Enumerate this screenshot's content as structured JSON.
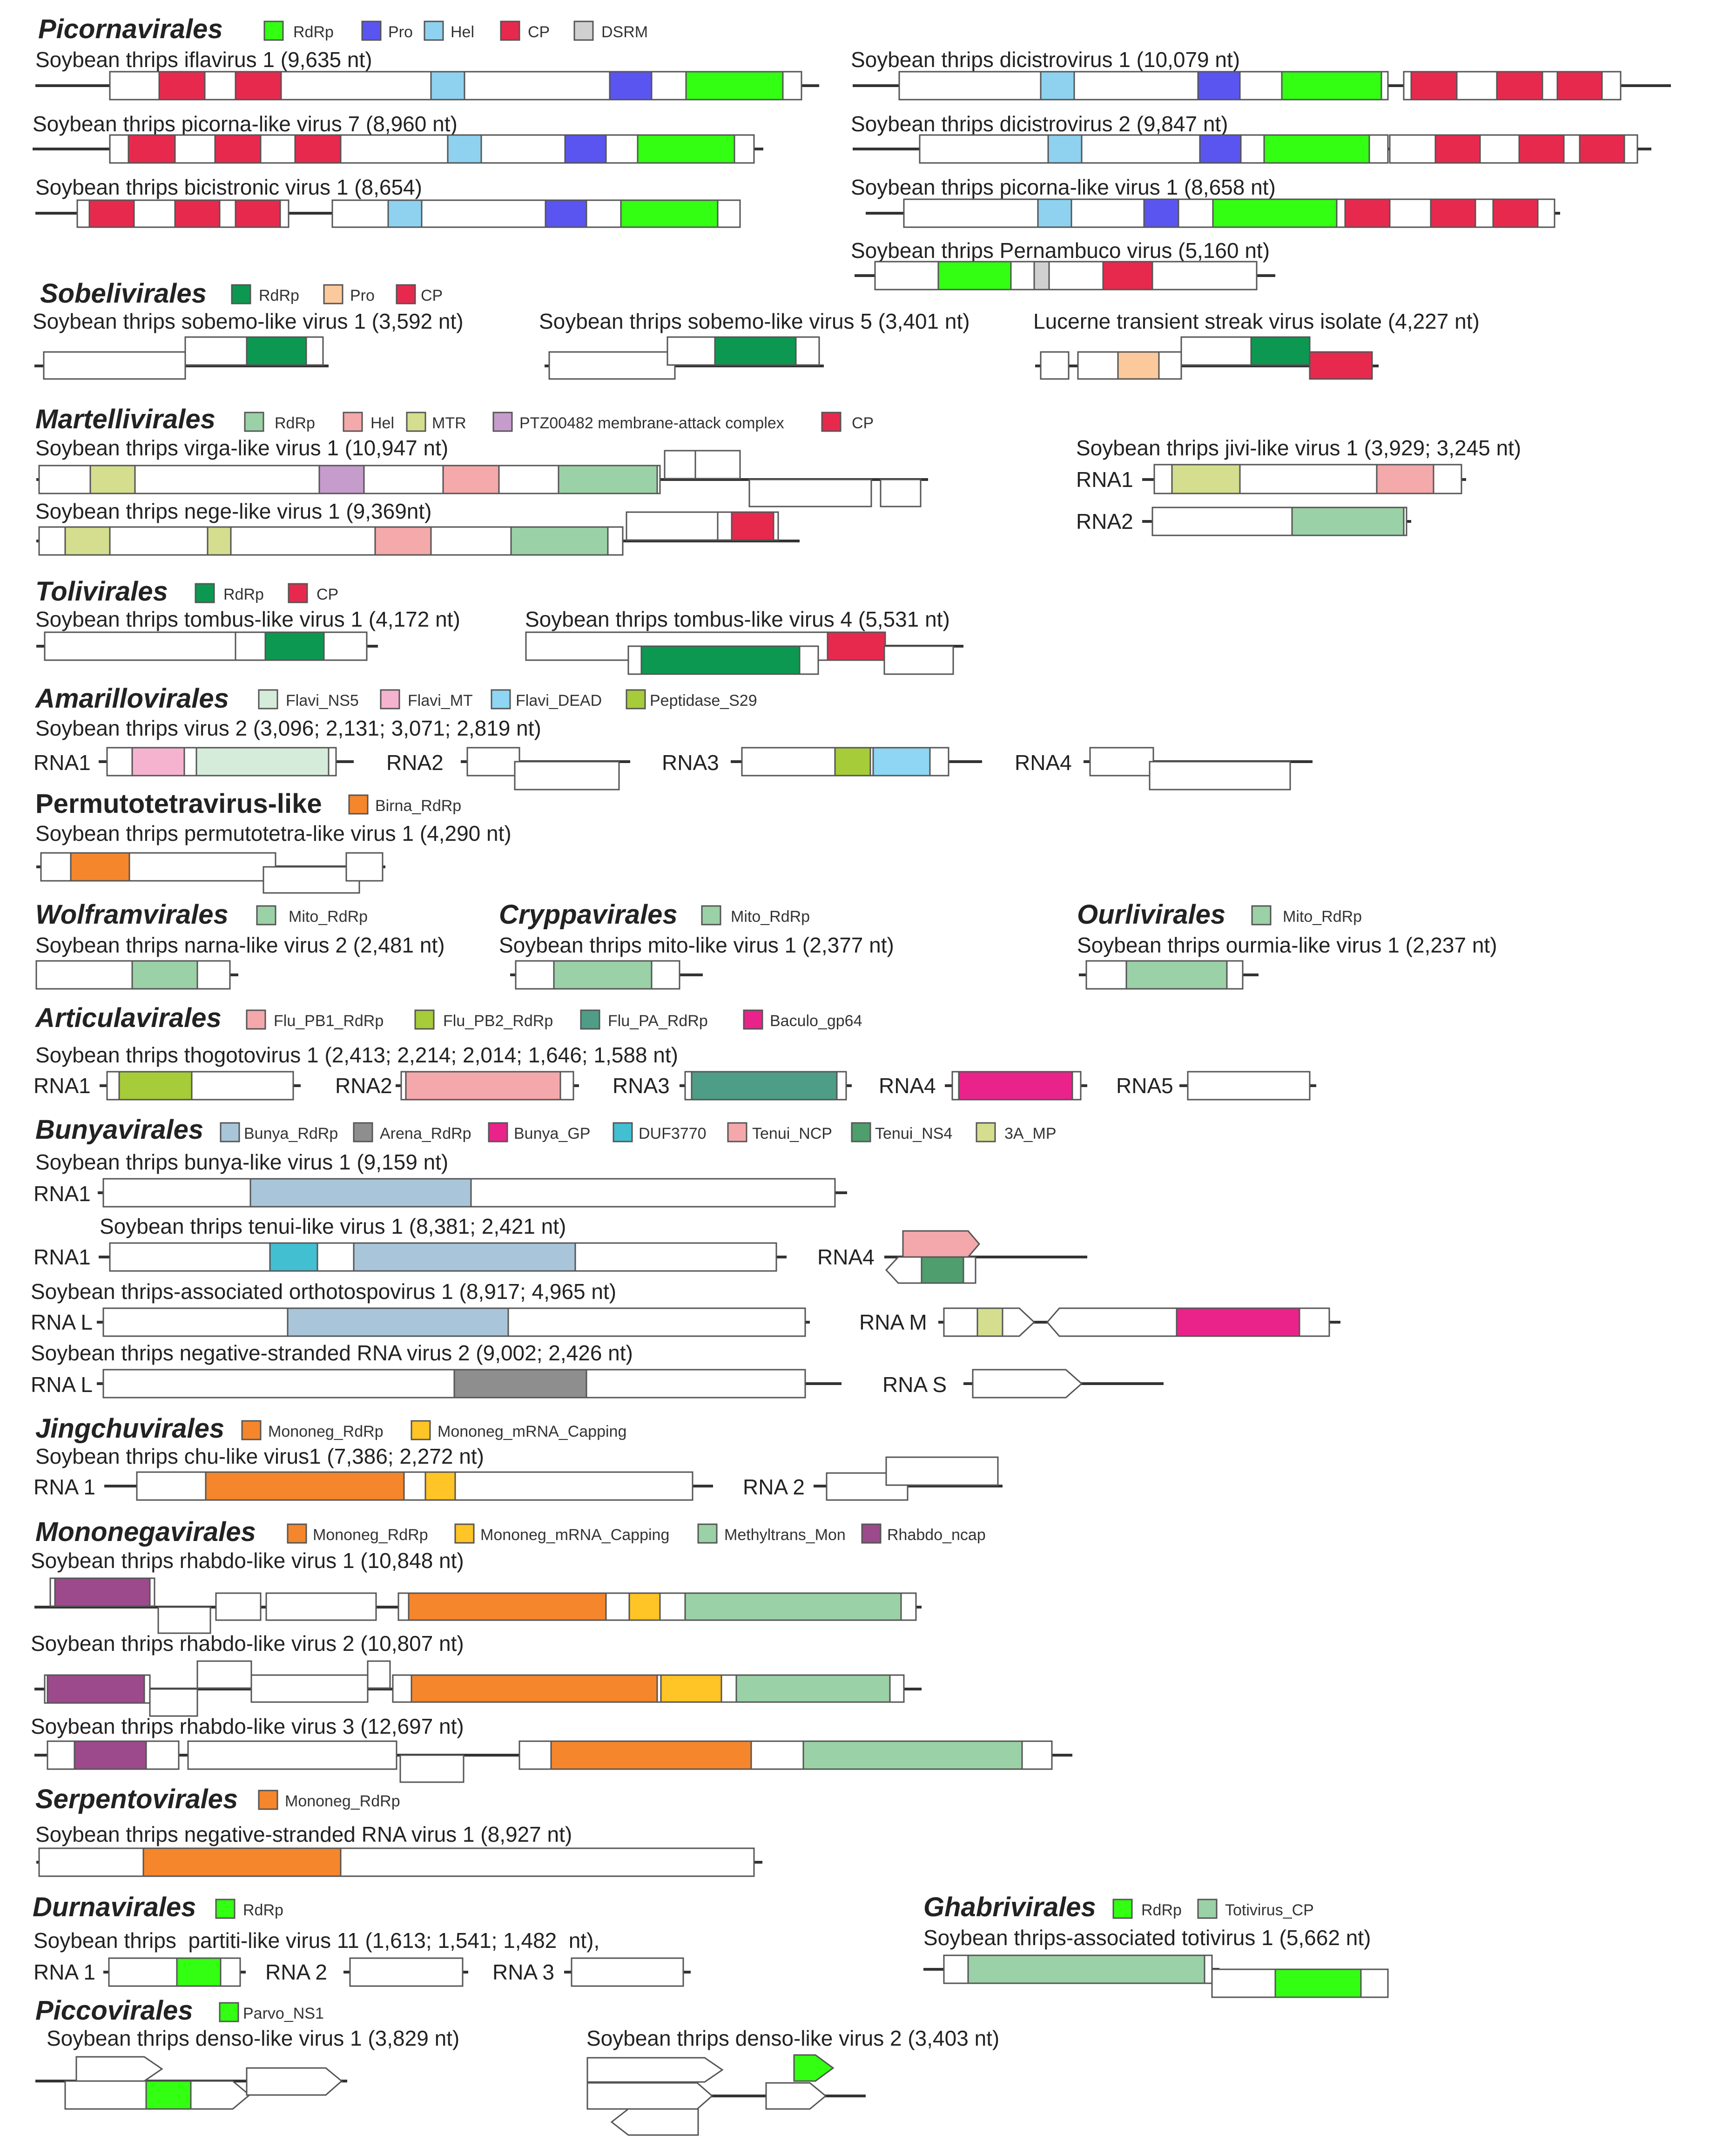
{
  "colors": {
    "rdrp_green": "#33ff12",
    "pro_blue": "#5a55f0",
    "hel_lightblue": "#8ed2f0",
    "cp_red": "#e8294e",
    "dsrm_gray": "#d0d0d0",
    "sob_rdrp": "#0c9850",
    "sob_pro": "#fcc99c",
    "mito_rdrp": "#9bd1a6",
    "hel_pink": "#f4a9aa",
    "mtr": "#d4de8e",
    "ptz": "#c69ccd",
    "flavi_ns5": "#d6ecda",
    "flavi_mt": "#f6b3cf",
    "flavi_dead": "#8ed6f4",
    "peptidase": "#a6cc39",
    "birna": "#f5862c",
    "flu_pb1": "#f4a8ab",
    "flu_pb2": "#a6cc39",
    "flu_pa": "#4e9e87",
    "baculo": "#e9238a",
    "bunya_rdrp": "#a9c5d9",
    "arena": "#8e8e8e",
    "bunya_gp": "#e9238a",
    "duf": "#42bfd0",
    "tenui_ncp": "#f4a8ab",
    "tenui_ns4": "#4e9e6e",
    "mp3a": "#d4de8e",
    "capping": "#ffc425",
    "methyl": "#9bd1a6",
    "rhabdo": "#9c4a8b",
    "totivirus_cp": "#9bd1a6",
    "parvo_ns1": "#33ff12",
    "line": "#333333",
    "box_border": "#555555"
  },
  "sections": {
    "picorna": {
      "title": "Picornavirales",
      "legend": [
        "RdRp",
        "Pro",
        "Hel",
        "CP",
        "DSRM"
      ],
      "viruses": [
        "Soybean thrips iflavirus 1 (9,635 nt)",
        "Soybean thrips picorna-like virus 7 (8,960 nt)",
        "Soybean thrips bicistronic virus 1 (8,654)",
        "Soybean thrips dicistrovirus 1 (10,079 nt)",
        "Soybean thrips dicistrovirus 2 (9,847 nt)",
        "Soybean thrips picorna-like virus 1 (8,658 nt)",
        "Soybean thrips Pernambuco virus (5,160 nt)"
      ]
    },
    "sobeli": {
      "title": "Sobelivirales",
      "legend": [
        "RdRp",
        "Pro",
        "CP"
      ],
      "viruses": [
        "Soybean thrips sobemo-like virus 1 (3,592 nt)",
        "Soybean thrips sobemo-like virus 5 (3,401 nt)",
        "Lucerne transient streak virus isolate (4,227 nt)"
      ]
    },
    "martelli": {
      "title": "Martellivirales",
      "legend": [
        "RdRp",
        "Hel",
        "MTR",
        "PTZ00482 membrane-attack complex",
        "CP"
      ],
      "viruses": [
        "Soybean thrips virga-like virus 1 (10,947 nt)",
        "Soybean thrips nege-like virus 1 (9,369nt)",
        "Soybean thrips jivi-like virus 1 (3,929; 3,245 nt)"
      ],
      "segments": [
        "RNA1",
        "RNA2"
      ]
    },
    "toli": {
      "title": "Tolivirales",
      "legend": [
        "RdRp",
        "CP"
      ],
      "viruses": [
        "Soybean thrips tombus-like virus 1 (4,172 nt)",
        "Soybean thrips tombus-like virus 4 (5,531 nt)"
      ]
    },
    "amarillo": {
      "title": "Amarillovirales",
      "legend": [
        "Flavi_NS5",
        "Flavi_MT",
        "Flavi_DEAD",
        "Peptidase_S29"
      ],
      "viruses": [
        "Soybean thrips virus 2 (3,096; 2,131; 3,071; 2,819 nt)"
      ],
      "segments": [
        "RNA1",
        "RNA2",
        "RNA3",
        "RNA4"
      ]
    },
    "permuto": {
      "title": "Permutotetravirus-like",
      "legend": [
        "Birna_RdRp"
      ],
      "viruses": [
        "Soybean thrips permutotetra-like virus 1 (4,290 nt)"
      ]
    },
    "wolfram": {
      "title": "Wolframvirales",
      "legend": [
        "Mito_RdRp"
      ],
      "viruses": [
        "Soybean thrips narna-like virus 2 (2,481 nt)"
      ]
    },
    "cryppa": {
      "title": "Cryppavirales",
      "legend": [
        "Mito_RdRp"
      ],
      "viruses": [
        "Soybean thrips mito-like virus 1 (2,377 nt)"
      ]
    },
    "ourli": {
      "title": "Ourlivirales",
      "legend": [
        "Mito_RdRp"
      ],
      "viruses": [
        "Soybean thrips ourmia-like virus 1 (2,237 nt)"
      ]
    },
    "articula": {
      "title": "Articulavirales",
      "legend": [
        "Flu_PB1_RdRp",
        "Flu_PB2_RdRp",
        "Flu_PA_RdRp",
        "Baculo_gp64"
      ],
      "viruses": [
        "Soybean thrips thogotovirus 1 (2,413; 2,214; 2,014; 1,646; 1,588 nt)"
      ],
      "segments": [
        "RNA1",
        "RNA2",
        "RNA3",
        "RNA4",
        "RNA5"
      ]
    },
    "bunya": {
      "title": "Bunyavirales",
      "legend": [
        "Bunya_RdRp",
        "Arena_RdRp",
        "Bunya_GP",
        "DUF3770",
        "Tenui_NCP",
        "Tenui_NS4",
        "3A_MP"
      ],
      "viruses": [
        "Soybean thrips bunya-like virus 1 (9,159 nt)",
        "Soybean thrips tenui-like virus 1 (8,381; 2,421 nt)",
        "Soybean thrips-associated orthotospovirus 1 (8,917; 4,965 nt)",
        "Soybean thrips negative-stranded RNA virus 2 (9,002; 2,426 nt)"
      ],
      "segments": [
        "RNA1",
        "RNA1",
        "RNA4",
        "RNA L",
        "RNA M",
        "RNA L",
        "RNA S"
      ]
    },
    "jingchu": {
      "title": "Jingchuvirales",
      "legend": [
        "Mononeg_RdRp",
        "Mononeg_mRNA_Capping"
      ],
      "viruses": [
        "Soybean thrips chu-like virus1 (7,386; 2,272 nt)"
      ],
      "segments": [
        "RNA 1",
        "RNA 2"
      ]
    },
    "mononega": {
      "title": "Mononegavirales",
      "legend": [
        "Mononeg_RdRp",
        "Mononeg_mRNA_Capping",
        "Methyltrans_Mon",
        "Rhabdo_ncap"
      ],
      "viruses": [
        "Soybean thrips rhabdo-like virus 1 (10,848 nt)",
        "Soybean thrips rhabdo-like virus 2 (10,807 nt)",
        "Soybean thrips rhabdo-like virus 3 (12,697 nt)"
      ]
    },
    "serpento": {
      "title": "Serpentovirales",
      "legend": [
        "Mononeg_RdRp"
      ],
      "viruses": [
        "Soybean thrips negative-stranded RNA virus 1 (8,927 nt)"
      ]
    },
    "durna": {
      "title": "Durnavirales",
      "legend": [
        "RdRp"
      ],
      "viruses": [
        "Soybean thrips  partiti-like virus 11 (1,613; 1,541; 1,482  nt),"
      ],
      "segments": [
        "RNA 1",
        "RNA 2",
        "RNA 3"
      ]
    },
    "ghabri": {
      "title": "Ghabrivirales",
      "legend": [
        "RdRp",
        "Totivirus_CP"
      ],
      "viruses": [
        "Soybean thrips-associated totivirus 1 (5,662 nt)"
      ]
    },
    "piccov": {
      "title": "Piccovirales",
      "legend": [
        "Parvo_NS1"
      ],
      "viruses": [
        "Soybean thrips denso-like virus 1 (3,829 nt)",
        "Soybean thrips denso-like virus 2 (3,403 nt)"
      ]
    }
  }
}
